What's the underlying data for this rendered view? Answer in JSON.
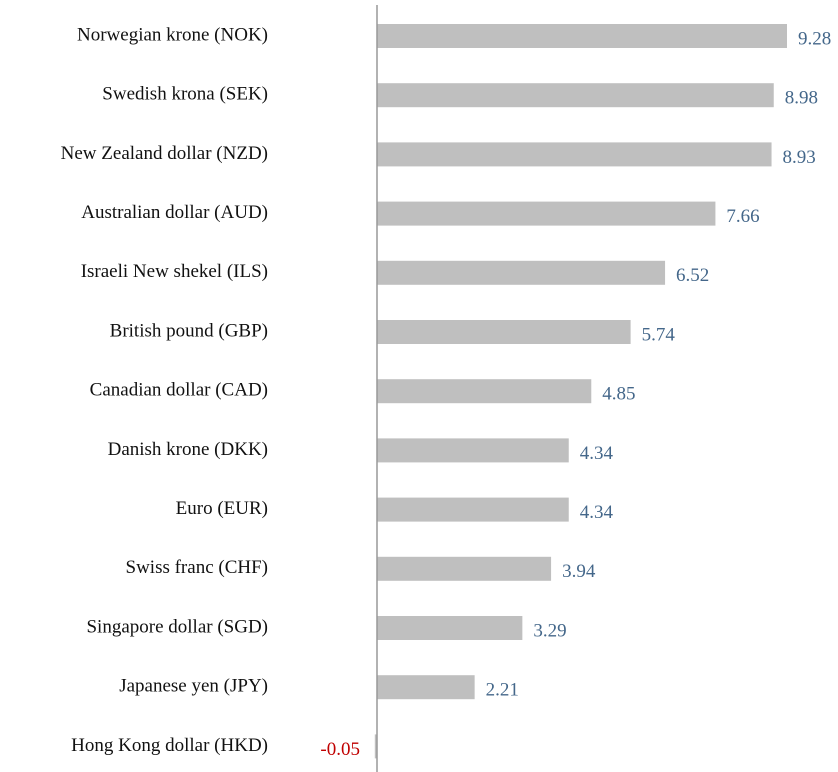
{
  "chart_data": {
    "type": "bar",
    "orientation": "horizontal",
    "categories": [
      "Norwegian krone (NOK)",
      "Swedish krona (SEK)",
      "New Zealand dollar (NZD)",
      "Australian dollar (AUD)",
      "Israeli New shekel (ILS)",
      "British pound (GBP)",
      "Canadian dollar (CAD)",
      "Danish krone (DKK)",
      "Euro (EUR)",
      "Swiss franc (CHF)",
      "Singapore dollar (SGD)",
      "Japanese yen (JPY)",
      "Hong Kong dollar (HKD)"
    ],
    "values": [
      9.28,
      8.98,
      8.93,
      7.66,
      6.52,
      5.74,
      4.85,
      4.34,
      4.34,
      3.94,
      3.29,
      2.21,
      -0.05
    ],
    "color": "#bfbfbf",
    "label_color": "#44678a",
    "negative_label_color": "#c00000"
  }
}
